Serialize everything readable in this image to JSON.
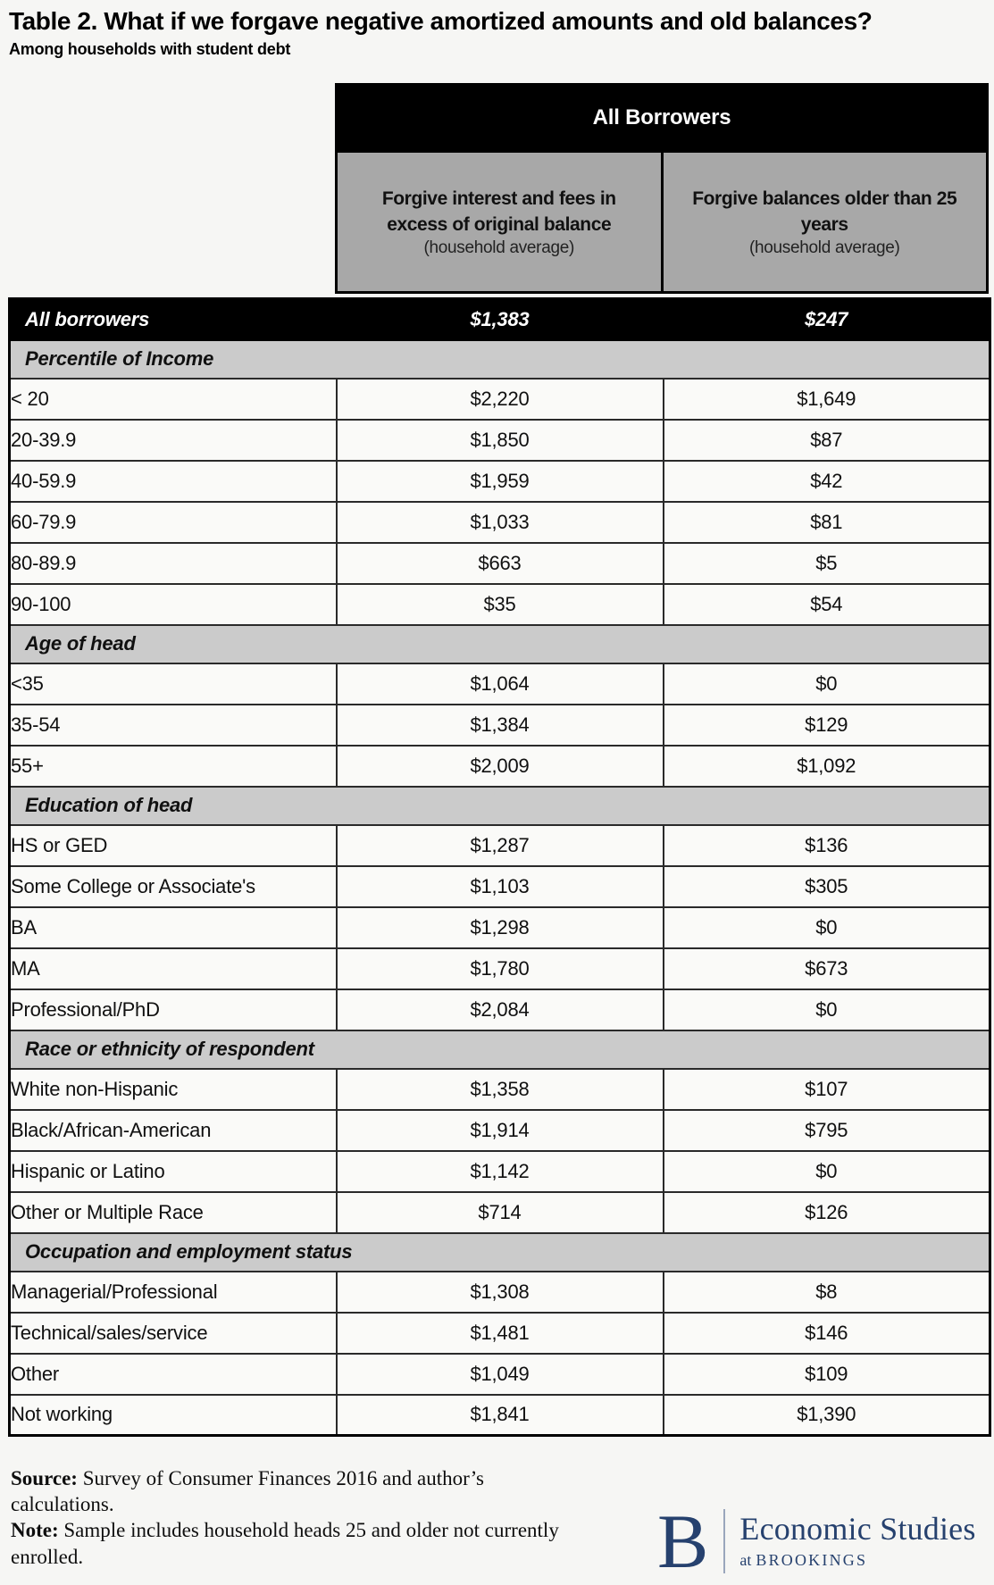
{
  "page": {
    "title": "Table 2. What if we forgave negative amortized amounts and old balances?",
    "subtitle": "Among households with student debt"
  },
  "table": {
    "group_header": "All Borrowers",
    "columns": [
      {
        "title": "Forgive interest and fees in excess of original balance",
        "subtitle": "(household average)"
      },
      {
        "title": "Forgive balances older than 25 years",
        "subtitle": "(household average)"
      }
    ],
    "total_row": {
      "label": "All borrowers",
      "values": [
        "$1,383",
        "$247"
      ]
    },
    "sections": [
      {
        "header": "Percentile of Income",
        "rows": [
          {
            "label": "< 20",
            "values": [
              "$2,220",
              "$1,649"
            ]
          },
          {
            "label": "20-39.9",
            "values": [
              "$1,850",
              "$87"
            ]
          },
          {
            "label": "40-59.9",
            "values": [
              "$1,959",
              "$42"
            ]
          },
          {
            "label": "60-79.9",
            "values": [
              "$1,033",
              "$81"
            ]
          },
          {
            "label": "80-89.9",
            "values": [
              "$663",
              "$5"
            ]
          },
          {
            "label": "90-100",
            "values": [
              "$35",
              "$54"
            ]
          }
        ]
      },
      {
        "header": "Age of head",
        "rows": [
          {
            "label": "<35",
            "values": [
              "$1,064",
              "$0"
            ]
          },
          {
            "label": "35-54",
            "values": [
              "$1,384",
              "$129"
            ]
          },
          {
            "label": "55+",
            "values": [
              "$2,009",
              "$1,092"
            ]
          }
        ]
      },
      {
        "header": "Education of head",
        "rows": [
          {
            "label": "HS or GED",
            "values": [
              "$1,287",
              "$136"
            ]
          },
          {
            "label": "Some College or Associate's",
            "values": [
              "$1,103",
              "$305"
            ]
          },
          {
            "label": "BA",
            "values": [
              "$1,298",
              "$0"
            ]
          },
          {
            "label": "MA",
            "values": [
              "$1,780",
              "$673"
            ]
          },
          {
            "label": "Professional/PhD",
            "values": [
              "$2,084",
              "$0"
            ]
          }
        ]
      },
      {
        "header": "Race or ethnicity of respondent",
        "rows": [
          {
            "label": "White non-Hispanic",
            "values": [
              "$1,358",
              "$107"
            ]
          },
          {
            "label": "Black/African-American",
            "values": [
              "$1,914",
              "$795"
            ]
          },
          {
            "label": "Hispanic or Latino",
            "values": [
              "$1,142",
              "$0"
            ]
          },
          {
            "label": "Other or Multiple Race",
            "values": [
              "$714",
              "$126"
            ]
          }
        ]
      },
      {
        "header": "Occupation and employment status",
        "rows": [
          {
            "label": "Managerial/Professional",
            "values": [
              "$1,308",
              "$8"
            ]
          },
          {
            "label": "Technical/sales/service",
            "values": [
              "$1,481",
              "$146"
            ]
          },
          {
            "label": "Other",
            "values": [
              "$1,049",
              "$109"
            ]
          },
          {
            "label": "Not working",
            "values": [
              "$1,841",
              "$1,390"
            ]
          }
        ]
      }
    ]
  },
  "footer": {
    "source_label": "Source:",
    "source_text": " Survey of Consumer Finances 2016 and author’s calculations.",
    "note_label": "Note:",
    "note_text": " Sample includes household heads 25 and older not currently enrolled.",
    "logo": {
      "letter": "B",
      "name": "Economic Studies",
      "sub_prefix": "at",
      "sub_name": "BROOKINGS"
    }
  },
  "colors": {
    "header_black": "#000000",
    "column_header_gray": "#a8a8a8",
    "section_gray": "#cbcbcb",
    "row_background": "#fafaf8",
    "page_background": "#f6f6f4",
    "brookings_navy": "#26416e"
  },
  "chart_data": {
    "type": "table",
    "title": "Table 2. What if we forgave negative amortized amounts and old balances?",
    "subtitle": "Among households with student debt",
    "column_group": "All Borrowers",
    "columns": [
      "Forgive interest and fees in excess of original balance (household average)",
      "Forgive balances older than 25 years (household average)"
    ],
    "rows": [
      {
        "type": "total",
        "label": "All borrowers",
        "values": [
          1383,
          247
        ]
      },
      {
        "type": "section",
        "label": "Percentile of Income"
      },
      {
        "type": "data",
        "label": "< 20",
        "values": [
          2220,
          1649
        ]
      },
      {
        "type": "data",
        "label": "20-39.9",
        "values": [
          1850,
          87
        ]
      },
      {
        "type": "data",
        "label": "40-59.9",
        "values": [
          1959,
          42
        ]
      },
      {
        "type": "data",
        "label": "60-79.9",
        "values": [
          1033,
          81
        ]
      },
      {
        "type": "data",
        "label": "80-89.9",
        "values": [
          663,
          5
        ]
      },
      {
        "type": "data",
        "label": "90-100",
        "values": [
          35,
          54
        ]
      },
      {
        "type": "section",
        "label": "Age of head"
      },
      {
        "type": "data",
        "label": "<35",
        "values": [
          1064,
          0
        ]
      },
      {
        "type": "data",
        "label": "35-54",
        "values": [
          1384,
          129
        ]
      },
      {
        "type": "data",
        "label": "55+",
        "values": [
          2009,
          1092
        ]
      },
      {
        "type": "section",
        "label": "Education of head"
      },
      {
        "type": "data",
        "label": "HS or GED",
        "values": [
          1287,
          136
        ]
      },
      {
        "type": "data",
        "label": "Some College or Associate's",
        "values": [
          1103,
          305
        ]
      },
      {
        "type": "data",
        "label": "BA",
        "values": [
          1298,
          0
        ]
      },
      {
        "type": "data",
        "label": "MA",
        "values": [
          1780,
          673
        ]
      },
      {
        "type": "data",
        "label": "Professional/PhD",
        "values": [
          2084,
          0
        ]
      },
      {
        "type": "section",
        "label": "Race or ethnicity of respondent"
      },
      {
        "type": "data",
        "label": "White non-Hispanic",
        "values": [
          1358,
          107
        ]
      },
      {
        "type": "data",
        "label": "Black/African-American",
        "values": [
          1914,
          795
        ]
      },
      {
        "type": "data",
        "label": "Hispanic or Latino",
        "values": [
          1142,
          0
        ]
      },
      {
        "type": "data",
        "label": "Other or Multiple Race",
        "values": [
          714,
          126
        ]
      },
      {
        "type": "section",
        "label": "Occupation and employment status"
      },
      {
        "type": "data",
        "label": "Managerial/Professional",
        "values": [
          1308,
          8
        ]
      },
      {
        "type": "data",
        "label": "Technical/sales/service",
        "values": [
          1481,
          146
        ]
      },
      {
        "type": "data",
        "label": "Other",
        "values": [
          1049,
          109
        ]
      },
      {
        "type": "data",
        "label": "Not working",
        "values": [
          1841,
          1390
        ]
      }
    ]
  }
}
